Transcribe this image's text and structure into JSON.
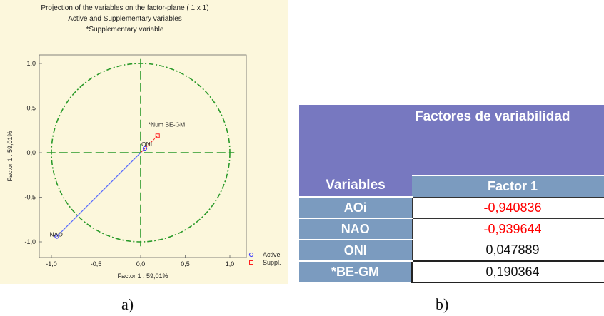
{
  "chart_data": {
    "type": "scatter",
    "title": "Projection of the variables on the factor-plane (  1 x   1)",
    "subtitle_1": "Active and Supplementary variables",
    "subtitle_2": "*Supplementary variable",
    "xlabel": "Factor 1 : 59,01%",
    "ylabel": "Factor 1 : 59,01%",
    "xlim": [
      -1.05,
      1.05
    ],
    "ylim": [
      -1.05,
      1.05
    ],
    "x_ticks": [
      -1.0,
      -0.5,
      0.0,
      0.5,
      1.0
    ],
    "x_tick_labels": [
      "-1,0",
      "-0,5",
      "0,0",
      "0,5",
      "1,0"
    ],
    "y_ticks": [
      1.0,
      0.5,
      0.0,
      -0.5,
      -1.0
    ],
    "y_tick_labels": [
      "1,0",
      "0,5",
      "0,0",
      "-0,5",
      "-1,0"
    ],
    "unit_circle": true,
    "legend": [
      {
        "label": "Active",
        "marker": "circle",
        "color": "#3b3bff"
      },
      {
        "label": "Suppl.",
        "marker": "square",
        "color": "#ff2020"
      }
    ],
    "points": [
      {
        "label": "AOi",
        "x": -0.94,
        "y": -0.94,
        "kind": "active"
      },
      {
        "label": "NAO",
        "x": -0.94,
        "y": -0.94,
        "kind": "active"
      },
      {
        "label": "ONI",
        "x": 0.048,
        "y": 0.048,
        "kind": "active"
      },
      {
        "label": "*Num BE-GM",
        "x": 0.19,
        "y": 0.19,
        "kind": "supplementary"
      }
    ],
    "point_label_text": [
      "NAO",
      "ONI",
      "*Num BE-GM"
    ],
    "colors": {
      "active": "#3b3bff",
      "supplementary": "#ff2020",
      "axis": "#2a9a2a",
      "circle": "#2a9a2a",
      "vector": "#5a6cff"
    }
  },
  "table": {
    "header_variables": "Variables",
    "header_group": "Factores de variabilidad",
    "header_factor": "Factor 1",
    "rows": [
      {
        "label": "AOi",
        "value": "-0,940836",
        "negative": true
      },
      {
        "label": "NAO",
        "value": "-0,939644",
        "negative": true
      },
      {
        "label": "ONI",
        "value": "0,047889",
        "negative": false
      },
      {
        "label": "*BE-GM",
        "value": "0,190364",
        "negative": false
      }
    ]
  },
  "captions": {
    "a": "a)",
    "b": "b)"
  }
}
